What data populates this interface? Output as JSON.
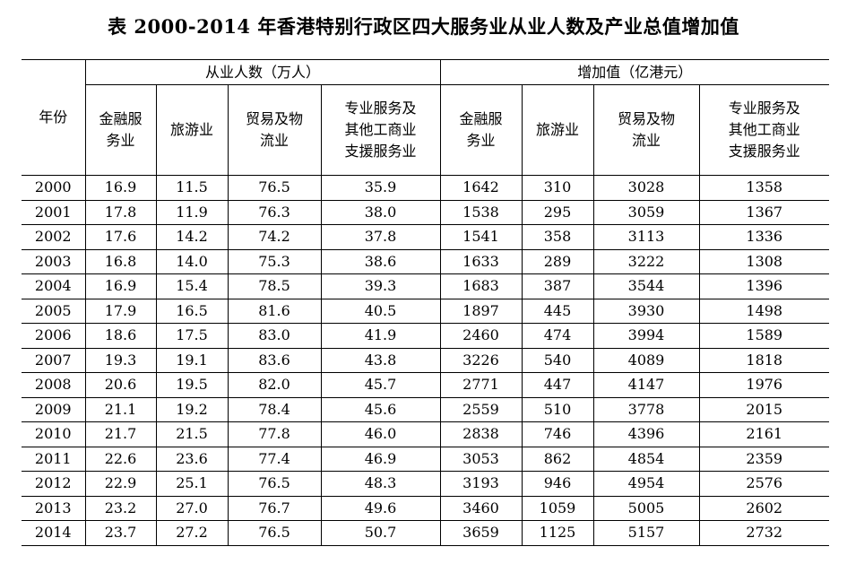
{
  "title": "表 2000-2014 年香港特别行政区四大服务业从业人数及产业总值增加值",
  "columns": {
    "year": "年份",
    "employment_group": "从业人数（万人）",
    "value_group": "增加值（亿港元）",
    "employment": [
      "金融服务业",
      "旅游业",
      "贸易及物流业",
      "专业服务及其他工商业支援服务业"
    ],
    "value": [
      "金融服务业",
      "旅游业",
      "贸易及物流业",
      "专业服务及其他工商业支援服务业"
    ]
  },
  "rows": [
    {
      "year": "2000",
      "emp": [
        "16.9",
        "11.5",
        "76.5",
        "35.9"
      ],
      "val": [
        "1642",
        "310",
        "3028",
        "1358"
      ]
    },
    {
      "year": "2001",
      "emp": [
        "17.8",
        "11.9",
        "76.3",
        "38.0"
      ],
      "val": [
        "1538",
        "295",
        "3059",
        "1367"
      ]
    },
    {
      "year": "2002",
      "emp": [
        "17.6",
        "14.2",
        "74.2",
        "37.8"
      ],
      "val": [
        "1541",
        "358",
        "3113",
        "1336"
      ]
    },
    {
      "year": "2003",
      "emp": [
        "16.8",
        "14.0",
        "75.3",
        "38.6"
      ],
      "val": [
        "1633",
        "289",
        "3222",
        "1308"
      ]
    },
    {
      "year": "2004",
      "emp": [
        "16.9",
        "15.4",
        "78.5",
        "39.3"
      ],
      "val": [
        "1683",
        "387",
        "3544",
        "1396"
      ]
    },
    {
      "year": "2005",
      "emp": [
        "17.9",
        "16.5",
        "81.6",
        "40.5"
      ],
      "val": [
        "1897",
        "445",
        "3930",
        "1498"
      ]
    },
    {
      "year": "2006",
      "emp": [
        "18.6",
        "17.5",
        "83.0",
        "41.9"
      ],
      "val": [
        "2460",
        "474",
        "3994",
        "1589"
      ]
    },
    {
      "year": "2007",
      "emp": [
        "19.3",
        "19.1",
        "83.6",
        "43.8"
      ],
      "val": [
        "3226",
        "540",
        "4089",
        "1818"
      ]
    },
    {
      "year": "2008",
      "emp": [
        "20.6",
        "19.5",
        "82.0",
        "45.7"
      ],
      "val": [
        "2771",
        "447",
        "4147",
        "1976"
      ]
    },
    {
      "year": "2009",
      "emp": [
        "21.1",
        "19.2",
        "78.4",
        "45.6"
      ],
      "val": [
        "2559",
        "510",
        "3778",
        "2015"
      ]
    },
    {
      "year": "2010",
      "emp": [
        "21.7",
        "21.5",
        "77.8",
        "46.0"
      ],
      "val": [
        "2838",
        "746",
        "4396",
        "2161"
      ]
    },
    {
      "year": "2011",
      "emp": [
        "22.6",
        "23.6",
        "77.4",
        "46.9"
      ],
      "val": [
        "3053",
        "862",
        "4854",
        "2359"
      ]
    },
    {
      "year": "2012",
      "emp": [
        "22.9",
        "25.1",
        "76.5",
        "48.3"
      ],
      "val": [
        "3193",
        "946",
        "4954",
        "2576"
      ]
    },
    {
      "year": "2013",
      "emp": [
        "23.2",
        "27.0",
        "76.7",
        "49.6"
      ],
      "val": [
        "3460",
        "1059",
        "5005",
        "2602"
      ]
    },
    {
      "year": "2014",
      "emp": [
        "23.7",
        "27.2",
        "76.5",
        "50.7"
      ],
      "val": [
        "3659",
        "1125",
        "5157",
        "2732"
      ]
    }
  ]
}
